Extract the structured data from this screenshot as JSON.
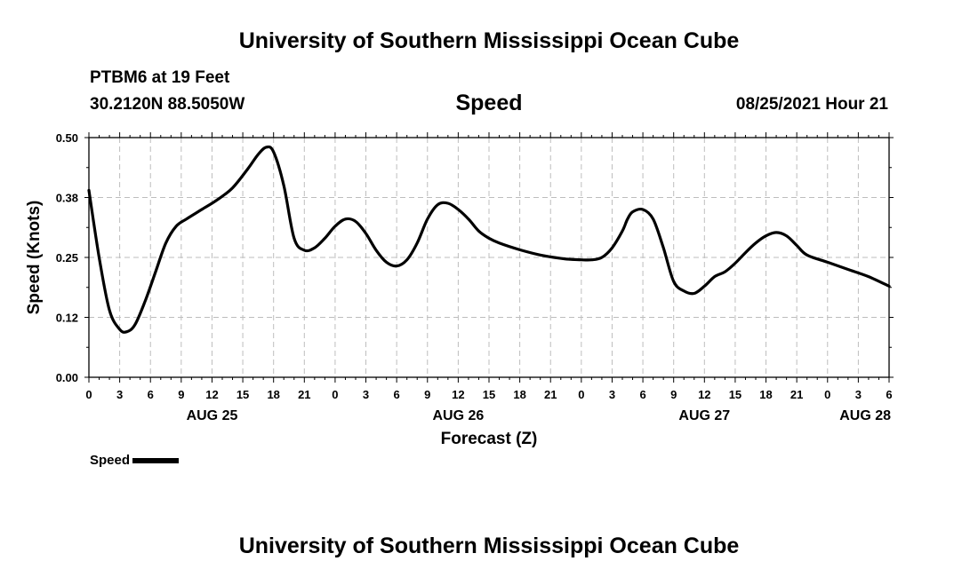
{
  "header": {
    "title": "University of Southern Mississippi Ocean Cube",
    "station": "PTBM6 at 19 Feet",
    "coords": "30.2120N  88.5050W",
    "variable": "Speed",
    "datetime": "08/25/2021 Hour 21"
  },
  "footer": {
    "title": "University of Southern Mississippi Ocean Cube"
  },
  "legend": {
    "label": "Speed"
  },
  "chart_data": {
    "type": "line",
    "title": "Speed",
    "xlabel": "Forecast (Z)",
    "ylabel": "Speed (Knots)",
    "ylim": [
      0,
      0.5
    ],
    "xlim_hours": [
      0,
      78
    ],
    "grid": true,
    "y_ticks": [
      "0.00",
      "0.12",
      "0.25",
      "0.38",
      "0.50"
    ],
    "x_ticks": [
      "0",
      "3",
      "6",
      "9",
      "12",
      "15",
      "18",
      "21",
      "0",
      "3",
      "6",
      "9",
      "12",
      "15",
      "18",
      "21",
      "0",
      "3",
      "6",
      "9",
      "12",
      "15",
      "18",
      "21",
      "0",
      "3",
      "6"
    ],
    "date_labels": [
      {
        "label": "AUG 25",
        "hour": 12
      },
      {
        "label": "AUG 26",
        "hour": 36
      },
      {
        "label": "AUG 27",
        "hour": 60
      },
      {
        "label": "AUG 28",
        "hour": 78
      }
    ],
    "series": [
      {
        "name": "Speed",
        "x": [
          0,
          1,
          2,
          3,
          3.7,
          4.5,
          5.5,
          6.5,
          7.5,
          8.5,
          9.5,
          11,
          12.5,
          14,
          15.5,
          16.5,
          17.3,
          18,
          19,
          20,
          21,
          22,
          23,
          24,
          25,
          26,
          27,
          28,
          29,
          30,
          31,
          32,
          33,
          34,
          35,
          36,
          37,
          38,
          39,
          40,
          42,
          44,
          46,
          47,
          48,
          49,
          50,
          51,
          52,
          52.5,
          53,
          54,
          55,
          56,
          57,
          58,
          59,
          60,
          61,
          62,
          63,
          64,
          65,
          66,
          67,
          68,
          69,
          70,
          72,
          74,
          76,
          78
        ],
        "y": [
          0.39,
          0.25,
          0.14,
          0.1,
          0.095,
          0.11,
          0.16,
          0.22,
          0.28,
          0.315,
          0.33,
          0.35,
          0.37,
          0.395,
          0.435,
          0.465,
          0.48,
          0.47,
          0.4,
          0.29,
          0.265,
          0.27,
          0.29,
          0.315,
          0.33,
          0.325,
          0.3,
          0.265,
          0.24,
          0.232,
          0.245,
          0.28,
          0.33,
          0.36,
          0.363,
          0.35,
          0.33,
          0.305,
          0.29,
          0.28,
          0.266,
          0.255,
          0.248,
          0.246,
          0.245,
          0.245,
          0.25,
          0.27,
          0.305,
          0.33,
          0.345,
          0.35,
          0.33,
          0.27,
          0.2,
          0.18,
          0.175,
          0.19,
          0.21,
          0.22,
          0.238,
          0.26,
          0.28,
          0.295,
          0.302,
          0.295,
          0.275,
          0.255,
          0.24,
          0.225,
          0.21,
          0.19
        ]
      }
    ]
  }
}
